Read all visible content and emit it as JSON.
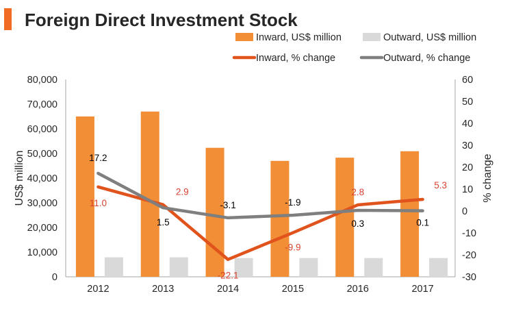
{
  "title": "Foreign Direct Investment Stock",
  "colors": {
    "accent_bar": "#F26B22",
    "inward_bar": "#F28E35",
    "outward_bar": "#D9D9D9",
    "inward_line": "#E0531C",
    "outward_line": "#7F7F7F",
    "inward_label": "#D9412F",
    "outward_label": "#000000",
    "axis": "#A6A6A6",
    "text": "#262626"
  },
  "chart_data": {
    "type": "bar",
    "title": "Foreign Direct Investment Stock",
    "categories": [
      "2012",
      "2013",
      "2014",
      "2015",
      "2016",
      "2017"
    ],
    "ylabel": "US$ million",
    "ylabel_right": "% change",
    "ylim": [
      0,
      80000
    ],
    "ylim_right": [
      -30,
      60
    ],
    "yticks": [
      "0",
      "10,000",
      "20,000",
      "30,000",
      "40,000",
      "50,000",
      "60,000",
      "70,000",
      "80,000"
    ],
    "yticks_right": [
      "-30",
      "-20",
      "-10",
      "0",
      "10",
      "20",
      "30",
      "40",
      "50",
      "60"
    ],
    "grid": false,
    "legend_position": "top-right",
    "series": [
      {
        "name": "Inward, US$ million",
        "kind": "bar",
        "axis": "left",
        "values": [
          65000,
          67000,
          52300,
          47000,
          48300,
          50900
        ]
      },
      {
        "name": "Outward, US$ million",
        "kind": "bar",
        "axis": "left",
        "values": [
          7900,
          7900,
          7600,
          7600,
          7600,
          7600
        ]
      },
      {
        "name": "Inward, % change",
        "kind": "line",
        "axis": "right",
        "values": [
          11.0,
          2.9,
          -22.1,
          -9.9,
          2.8,
          5.3
        ],
        "labels": [
          "11.0",
          "2.9",
          "-22.1",
          "-9.9",
          "2.8",
          "5.3"
        ]
      },
      {
        "name": "Outward, % change",
        "kind": "line",
        "axis": "right",
        "values": [
          17.2,
          1.5,
          -3.1,
          -1.9,
          0.3,
          0.1
        ],
        "labels": [
          "17.2",
          "1.5",
          "-3.1",
          "-1.9",
          "0.3",
          "0.1"
        ]
      }
    ]
  }
}
